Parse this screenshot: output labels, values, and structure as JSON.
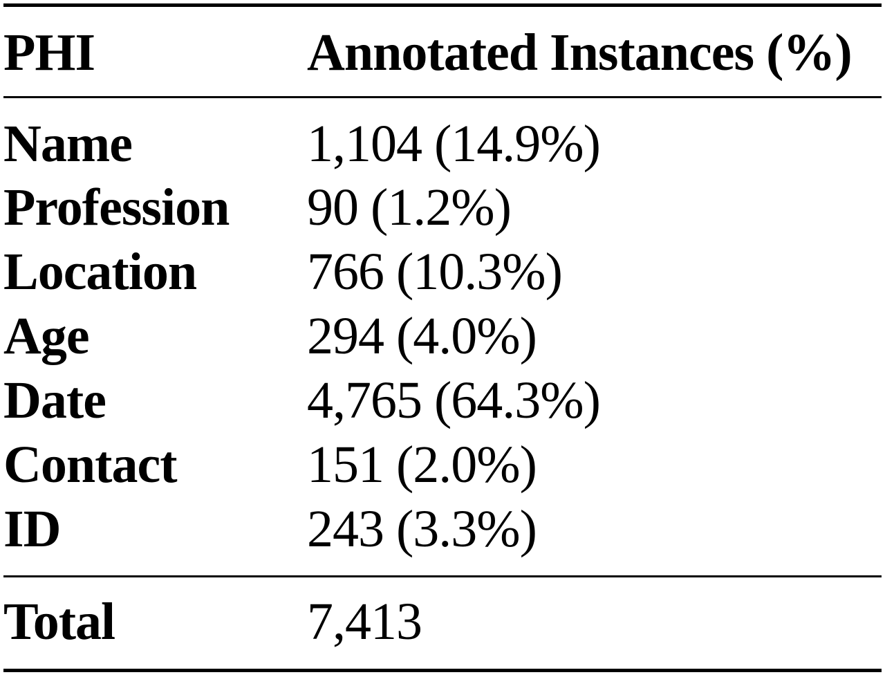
{
  "table": {
    "headers": [
      "PHI",
      "Annotated Instances (%)"
    ],
    "rows": [
      {
        "phi": "Name",
        "count": "1,104 (14.9%)"
      },
      {
        "phi": "Profession",
        "count": "90 (1.2%)"
      },
      {
        "phi": "Location",
        "count": "766 (10.3%)"
      },
      {
        "phi": "Age",
        "count": "294 (4.0%)"
      },
      {
        "phi": "Date",
        "count": "4,765 (64.3%)"
      },
      {
        "phi": "Contact",
        "count": "151 (2.0%)"
      },
      {
        "phi": "ID",
        "count": "243 (3.3%)"
      }
    ],
    "total": {
      "label": "Total",
      "count": "7,413"
    }
  }
}
